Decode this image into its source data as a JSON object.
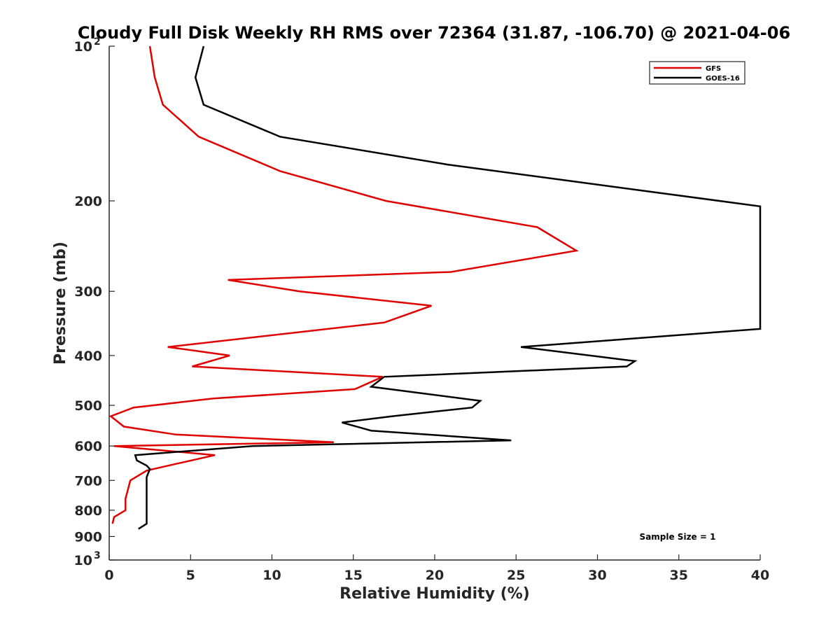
{
  "chart_data": {
    "type": "line",
    "title": "Cloudy Full Disk Weekly RH RMS over 72364 (31.87, -106.70) @ 2021-04-06",
    "xlabel": "Relative Humidity (%)",
    "ylabel": "Pressure (mb)",
    "xlim": [
      0,
      40
    ],
    "ylim": [
      100,
      1000
    ],
    "y_scale": "log",
    "y_reversed": true,
    "grid": false,
    "legend_position": "top-right",
    "x_ticks": [
      "0",
      "5",
      "10",
      "15",
      "20",
      "25",
      "30",
      "35",
      "40"
    ],
    "y_ticks": [
      {
        "value": 100,
        "label": "10",
        "sup": "2"
      },
      {
        "value": 200,
        "label": "200",
        "sup": ""
      },
      {
        "value": 300,
        "label": "300",
        "sup": ""
      },
      {
        "value": 400,
        "label": "400",
        "sup": ""
      },
      {
        "value": 500,
        "label": "500",
        "sup": ""
      },
      {
        "value": 600,
        "label": "600",
        "sup": ""
      },
      {
        "value": 700,
        "label": "700",
        "sup": ""
      },
      {
        "value": 800,
        "label": "800",
        "sup": ""
      },
      {
        "value": 900,
        "label": "900",
        "sup": ""
      },
      {
        "value": 1000,
        "label": "10",
        "sup": "3"
      }
    ],
    "annotation": "Sample Size = 1",
    "series": [
      {
        "name": "GFS",
        "color": "#e00000",
        "points": [
          [
            2.5,
            100
          ],
          [
            2.8,
            115
          ],
          [
            3.3,
            130
          ],
          [
            5.5,
            150
          ],
          [
            10.5,
            175
          ],
          [
            17.0,
            200
          ],
          [
            26.3,
            225
          ],
          [
            28.7,
            250
          ],
          [
            21.0,
            275
          ],
          [
            7.3,
            285
          ],
          [
            11.7,
            300
          ],
          [
            19.8,
            320
          ],
          [
            16.9,
            345
          ],
          [
            3.6,
            385
          ],
          [
            7.4,
            400
          ],
          [
            5.1,
            420
          ],
          [
            16.8,
            440
          ],
          [
            15.1,
            465
          ],
          [
            6.4,
            485
          ],
          [
            1.5,
            505
          ],
          [
            0.1,
            525
          ],
          [
            0.9,
            550
          ],
          [
            4.1,
            570
          ],
          [
            13.8,
            590
          ],
          [
            0.3,
            600
          ],
          [
            6.5,
            625
          ],
          [
            4.1,
            650
          ],
          [
            2.3,
            670
          ],
          [
            1.3,
            700
          ],
          [
            1.0,
            760
          ],
          [
            1.0,
            800
          ],
          [
            0.3,
            825
          ],
          [
            0.2,
            850
          ]
        ]
      },
      {
        "name": "GOES-16",
        "color": "#000000",
        "points": [
          [
            5.8,
            100
          ],
          [
            5.3,
            115
          ],
          [
            5.8,
            130
          ],
          [
            10.5,
            150
          ],
          [
            20.8,
            170
          ],
          [
            40.0,
            205
          ],
          [
            40.0,
            355
          ],
          [
            25.3,
            385
          ],
          [
            32.3,
            410
          ],
          [
            31.8,
            420
          ],
          [
            16.9,
            440
          ],
          [
            16.1,
            460
          ],
          [
            22.8,
            490
          ],
          [
            22.3,
            505
          ],
          [
            17.4,
            525
          ],
          [
            14.3,
            540
          ],
          [
            16.1,
            560
          ],
          [
            24.7,
            585
          ],
          [
            8.8,
            600
          ],
          [
            1.6,
            625
          ],
          [
            1.7,
            640
          ],
          [
            2.3,
            655
          ],
          [
            2.5,
            665
          ],
          [
            2.3,
            690
          ],
          [
            2.3,
            750
          ],
          [
            2.3,
            820
          ],
          [
            2.3,
            850
          ],
          [
            1.8,
            870
          ]
        ]
      }
    ]
  }
}
